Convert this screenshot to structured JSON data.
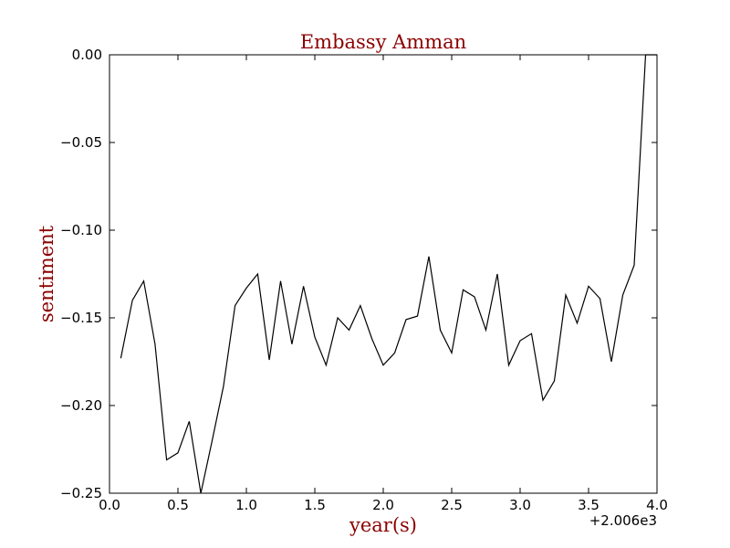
{
  "chart_data": {
    "type": "line",
    "title": "Embassy Amman",
    "xlabel": "year(s)",
    "ylabel": "sentiment",
    "x_offset_label": "+2.006e3",
    "xlim": [
      0.0,
      4.0
    ],
    "ylim": [
      -0.25,
      0.0
    ],
    "x_ticks": [
      "0.0",
      "0.5",
      "1.0",
      "1.5",
      "2.0",
      "2.5",
      "3.0",
      "3.5",
      "4.0"
    ],
    "x_tick_values": [
      0.0,
      0.5,
      1.0,
      1.5,
      2.0,
      2.5,
      3.0,
      3.5,
      4.0
    ],
    "y_ticks": [
      "0.00",
      "−0.05",
      "−0.10",
      "−0.15",
      "−0.20",
      "−0.25"
    ],
    "y_tick_values": [
      0.0,
      -0.05,
      -0.1,
      -0.15,
      -0.2,
      -0.25
    ],
    "grid": false,
    "colors": {
      "line": "#000000",
      "title": "#8b0000",
      "axis_label": "#8b0000"
    },
    "series": [
      {
        "x": [
          0.083,
          0.167,
          0.25,
          0.333,
          0.417,
          0.5,
          0.583,
          0.667,
          0.75,
          0.833,
          0.917,
          1.0,
          1.083,
          1.167,
          1.25,
          1.333,
          1.417,
          1.5,
          1.583,
          1.667,
          1.75,
          1.833,
          1.917,
          2.0,
          2.083,
          2.167,
          2.25,
          2.333,
          2.417,
          2.5,
          2.583,
          2.667,
          2.75,
          2.833,
          2.917,
          3.0,
          3.083,
          3.167,
          3.25,
          3.333,
          3.417,
          3.5,
          3.583,
          3.667,
          3.75,
          3.833,
          3.917,
          4.0
        ],
        "y": [
          -0.173,
          -0.14,
          -0.129,
          -0.165,
          -0.231,
          -0.227,
          -0.209,
          -0.25,
          -0.22,
          -0.189,
          -0.143,
          -0.133,
          -0.125,
          -0.174,
          -0.129,
          -0.165,
          -0.132,
          -0.161,
          -0.177,
          -0.15,
          -0.157,
          -0.143,
          -0.162,
          -0.177,
          -0.17,
          -0.151,
          -0.149,
          -0.115,
          -0.157,
          -0.17,
          -0.134,
          -0.138,
          -0.157,
          -0.125,
          -0.177,
          -0.163,
          -0.159,
          -0.197,
          -0.186,
          -0.137,
          -0.153,
          -0.132,
          -0.139,
          -0.175,
          -0.137,
          -0.12,
          0.0,
          0.0
        ]
      }
    ]
  }
}
